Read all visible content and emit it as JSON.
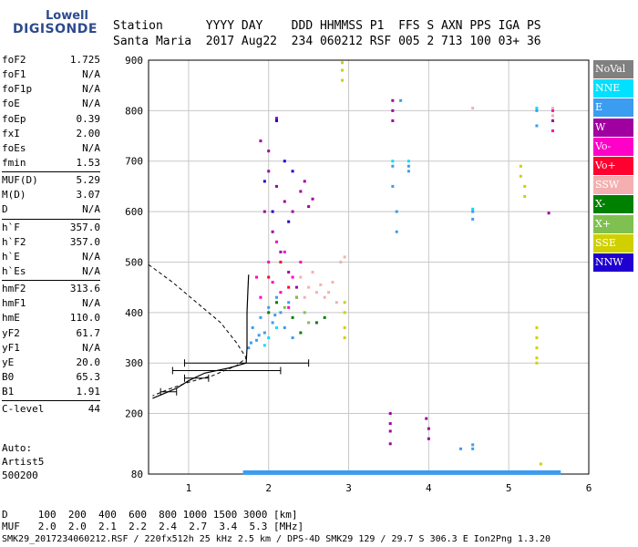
{
  "logo": {
    "top": "Lowell",
    "bottom": "DIGISONDE"
  },
  "header": {
    "line1": "Station      YYYY DAY    DDD HHMMSS P1  FFS S AXN PPS IGA PS",
    "line2": "Santa Maria  2017 Aug22  234 060212 RSF 005 2 713 100 03+ 36"
  },
  "params": [
    {
      "label": "foF2",
      "value": "1.725"
    },
    {
      "label": "foF1",
      "value": "N/A"
    },
    {
      "label": "foF1p",
      "value": "N/A"
    },
    {
      "label": "foE",
      "value": "N/A"
    },
    {
      "label": "foEp",
      "value": "0.39"
    },
    {
      "label": "fxI",
      "value": "2.00"
    },
    {
      "label": "foEs",
      "value": "N/A"
    },
    {
      "label": "fmin",
      "value": "1.53"
    },
    {
      "sep": true
    },
    {
      "label": "MUF(D)",
      "value": "5.29"
    },
    {
      "label": "M(D)",
      "value": "3.07"
    },
    {
      "label": "D",
      "value": "N/A"
    },
    {
      "sep": true
    },
    {
      "label": "h`F",
      "value": "357.0"
    },
    {
      "label": "h`F2",
      "value": "357.0"
    },
    {
      "label": "h`E",
      "value": "N/A"
    },
    {
      "label": "h`Es",
      "value": "N/A"
    },
    {
      "sep": true
    },
    {
      "label": "hmF2",
      "value": "313.6"
    },
    {
      "label": "hmF1",
      "value": "N/A"
    },
    {
      "label": "hmE",
      "value": "110.0"
    },
    {
      "label": "yF2",
      "value": "61.7"
    },
    {
      "label": "yF1",
      "value": "N/A"
    },
    {
      "label": "yE",
      "value": "20.0"
    },
    {
      "label": "B0",
      "value": "65.3"
    },
    {
      "label": "B1",
      "value": "1.91"
    },
    {
      "sep": true
    },
    {
      "label": "C-level",
      "value": "44"
    }
  ],
  "auto": {
    "line1": "Auto:",
    "line2": "Artist5",
    "line3": "500200"
  },
  "table": {
    "row1": "D     100  200  400  600  800 1000 1500 3000 [km]",
    "row2": "MUF   2.0  2.0  2.1  2.2  2.4  2.7  3.4  5.3 [MHz]"
  },
  "footer": "SMK29_2017234060212.RSF / 220fx512h 25 kHz 2.5 km / DPS-4D SMK29 129 / 29.7 S 306.3 E Ion2Png 1.3.20",
  "legend": [
    {
      "label": "NoVal",
      "color": "#808080"
    },
    {
      "label": "NNE",
      "color": "#00e0ff"
    },
    {
      "label": "E",
      "color": "#3c9cf0"
    },
    {
      "label": "W",
      "color": "#a000a0"
    },
    {
      "label": "Vo-",
      "color": "#ff00c8"
    },
    {
      "label": "Vo+",
      "color": "#ff0030"
    },
    {
      "label": "SSW",
      "color": "#f4b0b0"
    },
    {
      "label": "X-",
      "color": "#008000"
    },
    {
      "label": "X+",
      "color": "#80c050"
    },
    {
      "label": "SSE",
      "color": "#d0d000"
    },
    {
      "label": "NNW",
      "color": "#2000d0"
    }
  ],
  "chart_data": {
    "type": "scatter",
    "title": "",
    "xlabel": "",
    "ylabel": "",
    "xlim": [
      0.5,
      6
    ],
    "ylim": [
      80,
      900
    ],
    "x_ticks": [
      1,
      2,
      3,
      4,
      5,
      6
    ],
    "y_ticks": [
      80,
      200,
      300,
      400,
      500,
      600,
      700,
      800,
      900
    ],
    "grid": true,
    "series": [
      {
        "name": "E",
        "color": "#3c9cf0",
        "points": [
          [
            1.75,
            330
          ],
          [
            1.85,
            345
          ],
          [
            1.95,
            360
          ],
          [
            2.05,
            380
          ],
          [
            2.15,
            400
          ],
          [
            2.25,
            420
          ],
          [
            1.8,
            370
          ],
          [
            1.9,
            390
          ],
          [
            2.0,
            410
          ],
          [
            2.1,
            430
          ],
          [
            2.2,
            370
          ],
          [
            2.3,
            350
          ],
          [
            1.78,
            340
          ],
          [
            1.88,
            355
          ],
          [
            2.08,
            395
          ],
          [
            3.55,
            690
          ],
          [
            3.55,
            650
          ],
          [
            3.6,
            600
          ],
          [
            3.6,
            560
          ],
          [
            3.65,
            820
          ],
          [
            3.75,
            690
          ],
          [
            3.75,
            680
          ],
          [
            4.55,
            600
          ],
          [
            4.55,
            585
          ],
          [
            5.35,
            800
          ],
          [
            5.35,
            770
          ],
          [
            5.55,
            780
          ],
          [
            4.4,
            130
          ],
          [
            4.55,
            130
          ],
          [
            4.55,
            138
          ]
        ]
      },
      {
        "name": "NNE",
        "color": "#00e0ff",
        "points": [
          [
            2.0,
            350
          ],
          [
            2.1,
            370
          ],
          [
            1.95,
            335
          ],
          [
            3.55,
            700
          ],
          [
            3.75,
            700
          ],
          [
            5.35,
            805
          ],
          [
            4.55,
            605
          ]
        ]
      },
      {
        "name": "W",
        "color": "#a000a0",
        "points": [
          [
            1.9,
            740
          ],
          [
            2.0,
            720
          ],
          [
            2.1,
            650
          ],
          [
            2.2,
            620
          ],
          [
            2.3,
            600
          ],
          [
            2.4,
            640
          ],
          [
            2.45,
            660
          ],
          [
            2.55,
            625
          ],
          [
            2.5,
            610
          ],
          [
            2.0,
            680
          ],
          [
            1.95,
            600
          ],
          [
            2.05,
            560
          ],
          [
            2.15,
            520
          ],
          [
            2.25,
            480
          ],
          [
            2.35,
            450
          ],
          [
            2.1,
            785
          ],
          [
            3.55,
            820
          ],
          [
            3.55,
            800
          ],
          [
            3.55,
            780
          ],
          [
            3.52,
            200
          ],
          [
            3.52,
            180
          ],
          [
            3.52,
            165
          ],
          [
            3.52,
            140
          ],
          [
            3.97,
            190
          ],
          [
            4.0,
            170
          ],
          [
            4.0,
            150
          ],
          [
            5.5,
            597
          ],
          [
            5.55,
            780
          ]
        ]
      },
      {
        "name": "Vo-",
        "color": "#ff00c8",
        "points": [
          [
            2.0,
            500
          ],
          [
            2.1,
            540
          ],
          [
            2.2,
            520
          ],
          [
            2.3,
            470
          ],
          [
            2.4,
            500
          ],
          [
            2.05,
            460
          ],
          [
            2.15,
            440
          ],
          [
            2.25,
            410
          ],
          [
            1.85,
            470
          ],
          [
            1.9,
            430
          ],
          [
            5.55,
            800
          ],
          [
            5.55,
            760
          ]
        ]
      },
      {
        "name": "Vo+",
        "color": "#ff0030",
        "points": [
          [
            2.0,
            470
          ],
          [
            2.15,
            500
          ],
          [
            2.25,
            450
          ],
          [
            2.35,
            430
          ]
        ]
      },
      {
        "name": "SSW",
        "color": "#f4b0b0",
        "points": [
          [
            2.4,
            470
          ],
          [
            2.5,
            450
          ],
          [
            2.6,
            440
          ],
          [
            2.7,
            430
          ],
          [
            2.8,
            460
          ],
          [
            2.9,
            500
          ],
          [
            2.55,
            480
          ],
          [
            2.65,
            455
          ],
          [
            2.75,
            440
          ],
          [
            2.85,
            420
          ],
          [
            2.45,
            430
          ],
          [
            2.95,
            510
          ],
          [
            5.55,
            805
          ],
          [
            5.55,
            790
          ],
          [
            4.55,
            805
          ]
        ]
      },
      {
        "name": "X-",
        "color": "#008000",
        "points": [
          [
            2.0,
            400
          ],
          [
            2.1,
            420
          ],
          [
            2.3,
            390
          ],
          [
            2.4,
            360
          ],
          [
            2.6,
            380
          ],
          [
            2.7,
            390
          ]
        ]
      },
      {
        "name": "X+",
        "color": "#80c050",
        "points": [
          [
            2.2,
            410
          ],
          [
            2.35,
            430
          ],
          [
            2.5,
            380
          ],
          [
            2.45,
            400
          ]
        ]
      },
      {
        "name": "SSE",
        "color": "#d0d000",
        "points": [
          [
            2.92,
            895
          ],
          [
            2.92,
            880
          ],
          [
            2.92,
            860
          ],
          [
            2.95,
            420
          ],
          [
            2.95,
            400
          ],
          [
            2.95,
            370
          ],
          [
            2.95,
            350
          ],
          [
            5.15,
            690
          ],
          [
            5.15,
            670
          ],
          [
            5.2,
            650
          ],
          [
            5.2,
            630
          ],
          [
            5.35,
            370
          ],
          [
            5.35,
            350
          ],
          [
            5.35,
            330
          ],
          [
            5.35,
            310
          ],
          [
            5.35,
            300
          ],
          [
            5.4,
            100
          ]
        ]
      },
      {
        "name": "NNW",
        "color": "#2000d0",
        "points": [
          [
            2.1,
            780
          ],
          [
            1.95,
            660
          ],
          [
            2.2,
            700
          ],
          [
            2.3,
            680
          ],
          [
            2.05,
            600
          ],
          [
            2.25,
            580
          ]
        ]
      }
    ],
    "profile_curve": [
      [
        0.55,
        230
      ],
      [
        0.7,
        240
      ],
      [
        0.85,
        250
      ],
      [
        1.0,
        265
      ],
      [
        1.2,
        280
      ],
      [
        1.5,
        290
      ],
      [
        1.72,
        300
      ],
      [
        1.73,
        330
      ],
      [
        1.73,
        360
      ],
      [
        1.73,
        400
      ],
      [
        1.74,
        440
      ],
      [
        1.75,
        475
      ]
    ],
    "dashed_curve": [
      [
        0.5,
        495
      ],
      [
        0.8,
        460
      ],
      [
        1.1,
        420
      ],
      [
        1.4,
        380
      ],
      [
        1.6,
        340
      ],
      [
        1.72,
        310
      ],
      [
        1.6,
        295
      ],
      [
        1.3,
        275
      ],
      [
        1.0,
        262
      ],
      [
        0.75,
        248
      ],
      [
        0.55,
        235
      ]
    ],
    "error_bars": [
      {
        "x_min": 0.95,
        "x_max": 2.5,
        "y": 300
      },
      {
        "x_min": 0.8,
        "x_max": 2.15,
        "y": 285
      },
      {
        "x_min": 0.95,
        "x_max": 1.25,
        "y": 270
      },
      {
        "x_min": 0.65,
        "x_max": 0.85,
        "y": 243
      }
    ],
    "baseline_band": {
      "y": 82,
      "x_min": 1.68,
      "x_max": 5.65
    }
  }
}
